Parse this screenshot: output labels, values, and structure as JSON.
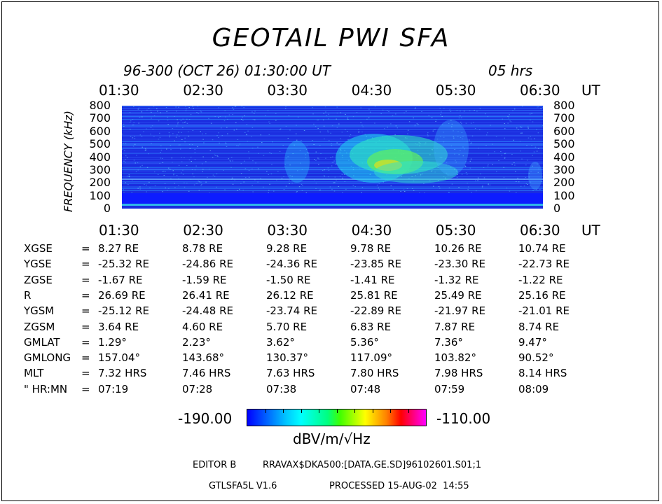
{
  "title": "GEOTAIL PWI SFA",
  "subtitle": "96-300 (OCT 26) 01:30:00 UT",
  "duration": "05 hrs",
  "chart_data": {
    "type": "heatmap",
    "xlabel": "UT",
    "ylabel": "FREQUENCY (kHz)",
    "x_ticks": [
      "01:30",
      "02:30",
      "03:30",
      "04:30",
      "05:30",
      "06:30"
    ],
    "y_ticks": [
      "800",
      "700",
      "600",
      "500",
      "400",
      "300",
      "200",
      "100",
      "0"
    ],
    "ylim": [
      0,
      800
    ],
    "colorbar": {
      "min": "-190.00",
      "max": "-110.00",
      "unit": "dBV/m/√Hz",
      "colors": [
        "#0000ff",
        "#00c8ff",
        "#00ffff",
        "#00ff80",
        "#40ff00",
        "#ffff00",
        "#ff8000",
        "#ff0000",
        "#ff00ff"
      ]
    }
  },
  "ephemeris": [
    {
      "label": "XGSE",
      "values": [
        "8.27 RE",
        "8.78 RE",
        "9.28 RE",
        "9.78 RE",
        "10.26 RE",
        "10.74 RE"
      ]
    },
    {
      "label": "YGSE",
      "values": [
        "-25.32 RE",
        "-24.86 RE",
        "-24.36 RE",
        "-23.85 RE",
        "-23.30 RE",
        "-22.73 RE"
      ]
    },
    {
      "label": "ZGSE",
      "values": [
        "-1.67 RE",
        "-1.59 RE",
        "-1.50 RE",
        "-1.41 RE",
        "-1.32 RE",
        "-1.22 RE"
      ]
    },
    {
      "label": "R",
      "values": [
        "26.69 RE",
        "26.41 RE",
        "26.12 RE",
        "25.81 RE",
        "25.49 RE",
        "25.16 RE"
      ]
    },
    {
      "label": "YGSM",
      "values": [
        "-25.12 RE",
        "-24.48 RE",
        "-23.74 RE",
        "-22.89 RE",
        "-21.97 RE",
        "-21.01 RE"
      ]
    },
    {
      "label": "ZGSM",
      "values": [
        "3.64 RE",
        "4.60 RE",
        "5.70 RE",
        "6.83 RE",
        "7.87 RE",
        "8.74 RE"
      ]
    },
    {
      "label": "GMLAT",
      "values": [
        "1.29°",
        "2.23°",
        "3.62°",
        "5.36°",
        "7.36°",
        "9.47°"
      ]
    },
    {
      "label": "GMLONG",
      "values": [
        "157.04°",
        "143.68°",
        "130.37°",
        "117.09°",
        "103.82°",
        "90.52°"
      ]
    },
    {
      "label": "MLT",
      "values": [
        "7.32 HRS",
        "7.46 HRS",
        "7.63 HRS",
        "7.80 HRS",
        "7.98 HRS",
        "8.14 HRS"
      ]
    },
    {
      "label": "\" HR:MN",
      "values": [
        "07:19",
        "07:28",
        "07:38",
        "07:48",
        "07:59",
        "08:09"
      ]
    }
  ],
  "footer": {
    "editor": "EDITOR B",
    "file": "RRAVAX$DKA500:[DATA.GE.SD]96102601.S01;1",
    "program": "GTLSFA5L V1.6",
    "processed": "PROCESSED 15-AUG-02  14:55"
  }
}
